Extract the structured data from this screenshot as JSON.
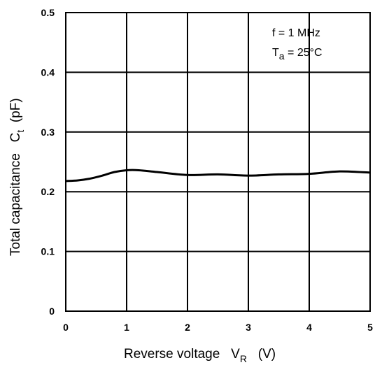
{
  "chart_data": {
    "type": "line",
    "xlabel": {
      "main": "Reverse voltage   V",
      "sub": "R",
      "unit": "   (V)"
    },
    "ylabel": {
      "main": "Total capacitance   C",
      "sub": "t",
      "unit": "  (pF)"
    },
    "xlim": [
      0,
      5
    ],
    "ylim": [
      0,
      0.5
    ],
    "x_ticks": [
      "0",
      "1",
      "2",
      "3",
      "4",
      "5"
    ],
    "y_ticks": [
      "0",
      "0.1",
      "0.2",
      "0.3",
      "0.4",
      "0.5"
    ],
    "grid": true,
    "annotations": {
      "freq": "f = 1 MHz",
      "temp_main": "T",
      "temp_sub": "a",
      "temp_rest": " = 25°C"
    },
    "series": [
      {
        "x": [
          0,
          0.2,
          0.4,
          0.6,
          0.8,
          1.0,
          1.2,
          1.5,
          2.0,
          2.5,
          3.0,
          3.5,
          4.0,
          4.5,
          5.0
        ],
        "values": [
          0.218,
          0.219,
          0.222,
          0.227,
          0.233,
          0.236,
          0.236,
          0.233,
          0.228,
          0.229,
          0.227,
          0.229,
          0.23,
          0.234,
          0.232
        ]
      }
    ]
  }
}
